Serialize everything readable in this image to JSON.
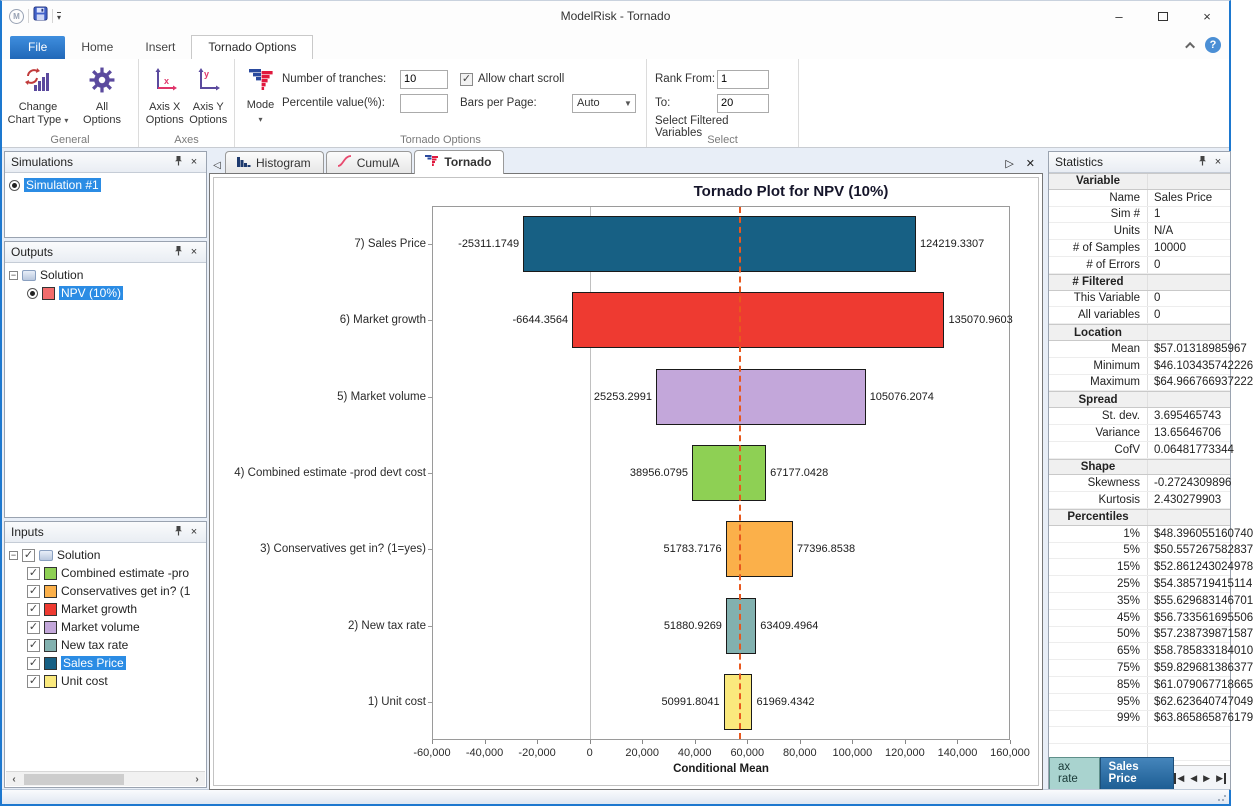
{
  "window": {
    "title": "ModelRisk - Tornado"
  },
  "ribbon": {
    "tabs": [
      {
        "label": "File",
        "style": "file"
      },
      {
        "label": "Home"
      },
      {
        "label": "Insert"
      },
      {
        "label": "Tornado Options",
        "active": true
      }
    ],
    "general": {
      "label": "General",
      "change_chart_l1": "Change",
      "change_chart_l2": "Chart Type",
      "all_l1": "All",
      "all_l2": "Options"
    },
    "axes": {
      "label": "Axes",
      "axisx_l1": "Axis X",
      "axisx_l2": "Options",
      "axisy_l1": "Axis Y",
      "axisy_l2": "Options"
    },
    "tornado": {
      "label": "Tornado Options",
      "mode_label": "Mode",
      "tranches_label": "Number of tranches:",
      "tranches_value": "10",
      "percentile_label": "Percentile value(%):",
      "percentile_value": "",
      "scroll_label": "Allow chart scroll",
      "scroll_checked": "✓",
      "bars_label": "Bars per Page:",
      "bars_value": "Auto"
    },
    "select": {
      "label": "Select",
      "from_label": "Rank From:",
      "from_value": "1",
      "to_label": "To:",
      "to_value": "20",
      "filtered_label": "Select Filtered Variables"
    }
  },
  "panels": {
    "simulations": {
      "title": "Simulations",
      "items": [
        {
          "label": "Simulation #1",
          "selected": true
        }
      ]
    },
    "outputs": {
      "title": "Outputs",
      "root": "Solution",
      "items": [
        {
          "label": "NPV (10%)",
          "color": "#f26c6c",
          "selected": true
        }
      ]
    },
    "inputs": {
      "title": "Inputs",
      "root": "Solution",
      "items": [
        {
          "label": "Combined estimate -pro",
          "color": "#8ed054"
        },
        {
          "label": "Conservatives get in? (1",
          "color": "#fbb04a"
        },
        {
          "label": "Market growth",
          "color": "#ee3a31"
        },
        {
          "label": "Market volume",
          "color": "#c3a7da"
        },
        {
          "label": "New tax rate",
          "color": "#82b1af"
        },
        {
          "label": "Sales Price",
          "color": "#176084",
          "selected": true
        },
        {
          "label": "Unit cost",
          "color": "#fae97d"
        }
      ]
    }
  },
  "chart_tabs": [
    {
      "label": "Histogram",
      "icon": "histogram-icon"
    },
    {
      "label": "CumulA",
      "icon": "cumulative-icon"
    },
    {
      "label": "Tornado",
      "icon": "tornado-icon",
      "active": true
    }
  ],
  "chart_data": {
    "type": "bar",
    "title": "Tornado Plot for NPV (10%)",
    "xlabel": "Conditional Mean",
    "xlim": [
      -60000,
      160000
    ],
    "xtick_values": [
      -60000,
      -40000,
      -20000,
      0,
      20000,
      40000,
      60000,
      80000,
      100000,
      120000,
      140000,
      160000
    ],
    "xtick_labels": [
      "-60,000",
      "-40,000",
      "-20,000",
      "0",
      "20,000",
      "40,000",
      "60,000",
      "80,000",
      "100,000",
      "120,000",
      "140,000",
      "160,000"
    ],
    "mean_line_value": 57013.19,
    "zero_gridline": true,
    "legend": "none",
    "bars": [
      {
        "category": "7) Sales Price",
        "low": -25311.1749,
        "high": 124219.3307,
        "low_label": "-25311.1749",
        "high_label": "124219.3307",
        "color": "#176084"
      },
      {
        "category": "6) Market growth",
        "low": -6644.3564,
        "high": 135070.9603,
        "low_label": "-6644.3564",
        "high_label": "135070.9603",
        "color": "#ee3a31"
      },
      {
        "category": "5) Market volume",
        "low": 25253.2991,
        "high": 105076.2074,
        "low_label": "25253.2991",
        "high_label": "105076.2074",
        "color": "#c3a7da"
      },
      {
        "category": "4) Combined estimate -prod devt cost",
        "low": 38956.0795,
        "high": 67177.0428,
        "low_label": "38956.0795",
        "high_label": "67177.0428",
        "color": "#8ed054"
      },
      {
        "category": "3) Conservatives get in? (1=yes)",
        "low": 51783.7176,
        "high": 77396.8538,
        "low_label": "51783.7176",
        "high_label": "77396.8538",
        "color": "#fbb04a"
      },
      {
        "category": "2) New tax rate",
        "low": 51880.9269,
        "high": 63409.4964,
        "low_label": "51880.9269",
        "high_label": "63409.4964",
        "color": "#82b1af"
      },
      {
        "category": "1) Unit cost",
        "low": 50991.8041,
        "high": 61969.4342,
        "low_label": "50991.8041",
        "high_label": "61969.4342",
        "color": "#fae97d"
      }
    ]
  },
  "statistics": {
    "title": "Statistics",
    "rows": [
      {
        "header": true,
        "label": "Variable"
      },
      {
        "label": "Name",
        "value": "Sales Price"
      },
      {
        "label": "Sim #",
        "value": "1"
      },
      {
        "label": "Units",
        "value": "N/A"
      },
      {
        "label": "# of Samples",
        "value": "10000"
      },
      {
        "label": "# of Errors",
        "value": "0"
      },
      {
        "header": true,
        "label": "# Filtered"
      },
      {
        "label": "This Variable",
        "value": "0"
      },
      {
        "label": "All variables",
        "value": "0"
      },
      {
        "header": true,
        "label": "Location"
      },
      {
        "label": "Mean",
        "value": "$57.01318985967"
      },
      {
        "label": "Minimum",
        "value": "$46.103435742226"
      },
      {
        "label": "Maximum",
        "value": "$64.966766937222"
      },
      {
        "header": true,
        "label": "Spread"
      },
      {
        "label": "St. dev.",
        "value": "3.695465743"
      },
      {
        "label": "Variance",
        "value": "13.65646706"
      },
      {
        "label": "CofV",
        "value": "0.06481773344"
      },
      {
        "header": true,
        "label": "Shape"
      },
      {
        "label": "Skewness",
        "value": "-0.2724309896"
      },
      {
        "label": "Kurtosis",
        "value": "2.430279903"
      },
      {
        "header": true,
        "label": "Percentiles"
      },
      {
        "label": "1%",
        "value": "$48.396055160740"
      },
      {
        "label": "5%",
        "value": "$50.557267582837"
      },
      {
        "label": "15%",
        "value": "$52.861243024978"
      },
      {
        "label": "25%",
        "value": "$54.385719415114"
      },
      {
        "label": "35%",
        "value": "$55.629683146701"
      },
      {
        "label": "45%",
        "value": "$56.733561695506"
      },
      {
        "label": "50%",
        "value": "$57.238739871587"
      },
      {
        "label": "65%",
        "value": "$58.785833184010"
      },
      {
        "label": "75%",
        "value": "$59.829681386377"
      },
      {
        "label": "85%",
        "value": "$61.079067718665"
      },
      {
        "label": "95%",
        "value": "$62.623640747049"
      },
      {
        "label": "99%",
        "value": "$63.865865876179"
      }
    ],
    "variable_tabs": [
      {
        "label": "ax rate"
      },
      {
        "label": "Sales Price",
        "active": true
      }
    ]
  }
}
